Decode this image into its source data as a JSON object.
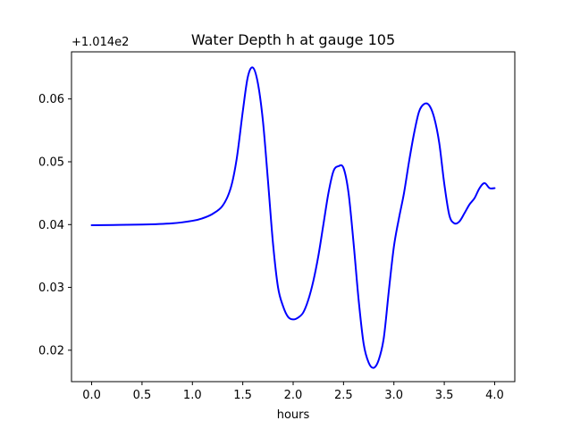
{
  "chart_data": {
    "type": "line",
    "title": "Water Depth h at gauge 105",
    "xlabel": "hours",
    "ylabel": "",
    "offset_label": "+1.014e2",
    "xlim": [
      -0.2,
      4.2
    ],
    "ylim": [
      0.015,
      0.0675
    ],
    "xticks": [
      0.0,
      0.5,
      1.0,
      1.5,
      2.0,
      2.5,
      3.0,
      3.5,
      4.0
    ],
    "xtick_labels": [
      "0.0",
      "0.5",
      "1.0",
      "1.5",
      "2.0",
      "2.5",
      "3.0",
      "3.5",
      "4.0"
    ],
    "yticks": [
      0.02,
      0.03,
      0.04,
      0.05,
      0.06
    ],
    "ytick_labels": [
      "0.02",
      "0.03",
      "0.04",
      "0.05",
      "0.06"
    ],
    "grid": false,
    "series": [
      {
        "color": "#0000ff",
        "x": [
          0.0,
          0.5,
          0.8,
          1.0,
          1.1,
          1.2,
          1.3,
          1.38,
          1.44,
          1.5,
          1.55,
          1.6,
          1.65,
          1.7,
          1.75,
          1.8,
          1.85,
          1.9,
          1.95,
          2.0,
          2.05,
          2.1,
          2.15,
          2.2,
          2.25,
          2.3,
          2.35,
          2.4,
          2.45,
          2.5,
          2.55,
          2.6,
          2.65,
          2.7,
          2.75,
          2.8,
          2.85,
          2.9,
          2.95,
          3.0,
          3.05,
          3.1,
          3.15,
          3.2,
          3.25,
          3.3,
          3.35,
          3.4,
          3.45,
          3.5,
          3.55,
          3.6,
          3.65,
          3.7,
          3.75,
          3.8,
          3.85,
          3.9,
          3.95,
          4.0
        ],
        "y": [
          0.0399,
          0.04,
          0.0402,
          0.0406,
          0.041,
          0.0417,
          0.043,
          0.0458,
          0.0505,
          0.058,
          0.0635,
          0.065,
          0.0625,
          0.0565,
          0.047,
          0.037,
          0.03,
          0.027,
          0.0253,
          0.0249,
          0.0252,
          0.026,
          0.028,
          0.031,
          0.035,
          0.04,
          0.045,
          0.0485,
          0.0493,
          0.049,
          0.045,
          0.037,
          0.028,
          0.021,
          0.018,
          0.0172,
          0.0185,
          0.022,
          0.0295,
          0.0365,
          0.041,
          0.045,
          0.05,
          0.0545,
          0.058,
          0.0592,
          0.059,
          0.057,
          0.053,
          0.0465,
          0.0415,
          0.0402,
          0.0405,
          0.0418,
          0.0432,
          0.0442,
          0.0458,
          0.0466,
          0.0458,
          0.0458
        ]
      }
    ]
  }
}
